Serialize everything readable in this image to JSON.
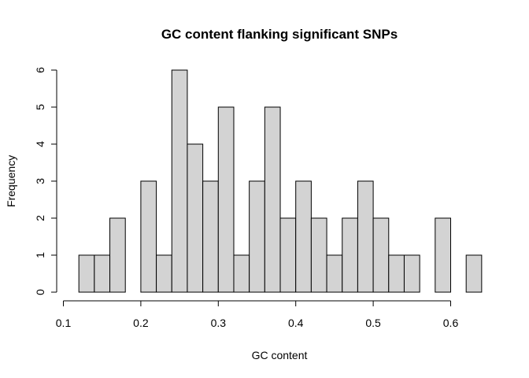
{
  "chart_data": {
    "type": "bar",
    "title": "GC content flanking significant SNPs",
    "xlabel": "GC content",
    "ylabel": "Frequency",
    "bin_width": 0.02,
    "bins": [
      {
        "x0": 0.12,
        "x1": 0.14,
        "count": 1
      },
      {
        "x0": 0.14,
        "x1": 0.16,
        "count": 1
      },
      {
        "x0": 0.16,
        "x1": 0.18,
        "count": 2
      },
      {
        "x0": 0.18,
        "x1": 0.2,
        "count": 0
      },
      {
        "x0": 0.2,
        "x1": 0.22,
        "count": 3
      },
      {
        "x0": 0.22,
        "x1": 0.24,
        "count": 1
      },
      {
        "x0": 0.24,
        "x1": 0.26,
        "count": 6
      },
      {
        "x0": 0.26,
        "x1": 0.28,
        "count": 4
      },
      {
        "x0": 0.28,
        "x1": 0.3,
        "count": 3
      },
      {
        "x0": 0.3,
        "x1": 0.32,
        "count": 5
      },
      {
        "x0": 0.32,
        "x1": 0.34,
        "count": 1
      },
      {
        "x0": 0.34,
        "x1": 0.36,
        "count": 3
      },
      {
        "x0": 0.36,
        "x1": 0.38,
        "count": 5
      },
      {
        "x0": 0.38,
        "x1": 0.4,
        "count": 2
      },
      {
        "x0": 0.4,
        "x1": 0.42,
        "count": 3
      },
      {
        "x0": 0.42,
        "x1": 0.44,
        "count": 2
      },
      {
        "x0": 0.44,
        "x1": 0.46,
        "count": 1
      },
      {
        "x0": 0.46,
        "x1": 0.48,
        "count": 2
      },
      {
        "x0": 0.48,
        "x1": 0.5,
        "count": 3
      },
      {
        "x0": 0.5,
        "x1": 0.52,
        "count": 2
      },
      {
        "x0": 0.52,
        "x1": 0.54,
        "count": 1
      },
      {
        "x0": 0.54,
        "x1": 0.56,
        "count": 1
      },
      {
        "x0": 0.56,
        "x1": 0.58,
        "count": 0
      },
      {
        "x0": 0.58,
        "x1": 0.6,
        "count": 2
      },
      {
        "x0": 0.6,
        "x1": 0.62,
        "count": 0
      },
      {
        "x0": 0.62,
        "x1": 0.64,
        "count": 1
      }
    ],
    "xlim": [
      0.1,
      0.64
    ],
    "ylim": [
      0,
      6
    ],
    "xticks": [
      0.1,
      0.2,
      0.3,
      0.4,
      0.5,
      0.6
    ],
    "xtick_labels": [
      "0.1",
      "0.2",
      "0.3",
      "0.4",
      "0.5",
      "0.6"
    ],
    "yticks": [
      0,
      1,
      2,
      3,
      4,
      5,
      6
    ],
    "ytick_labels": [
      "0",
      "1",
      "2",
      "3",
      "4",
      "5",
      "6"
    ],
    "bar_fill": "#d3d3d3",
    "bar_stroke": "#000000",
    "grid": false,
    "legend": "none"
  }
}
